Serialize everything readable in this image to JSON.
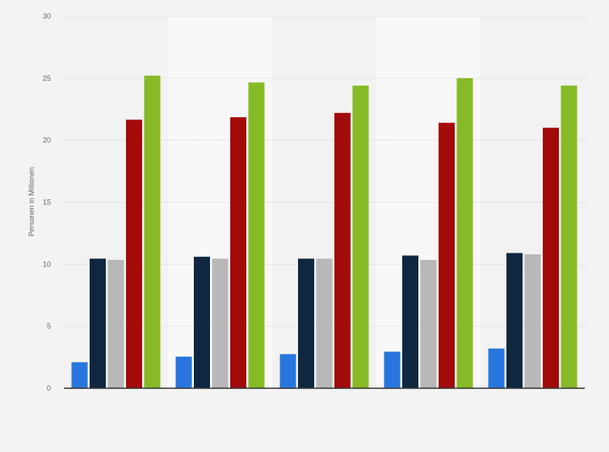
{
  "chart_data": {
    "type": "bar",
    "title": "",
    "xlabel": "",
    "ylabel": "Personen in Millionen",
    "ylim": [
      0,
      30
    ],
    "yticks": [
      0,
      5,
      10,
      15,
      20,
      25,
      30
    ],
    "grid": true,
    "legend": "none",
    "categories": [
      "",
      "",
      "",
      "",
      ""
    ],
    "series": [
      {
        "color": "#2876dd",
        "values": [
          2.1,
          2.55,
          2.75,
          2.95,
          3.2
        ]
      },
      {
        "color": "#0f2741",
        "values": [
          10.45,
          10.6,
          10.45,
          10.7,
          10.9
        ]
      },
      {
        "color": "#b8b8b8",
        "values": [
          10.35,
          10.45,
          10.45,
          10.35,
          10.8
        ]
      },
      {
        "color": "#a30b0b",
        "values": [
          21.65,
          21.85,
          22.2,
          21.4,
          21.0
        ]
      },
      {
        "color": "#86ba26",
        "values": [
          25.2,
          24.65,
          24.4,
          25.0,
          24.4
        ]
      }
    ]
  }
}
